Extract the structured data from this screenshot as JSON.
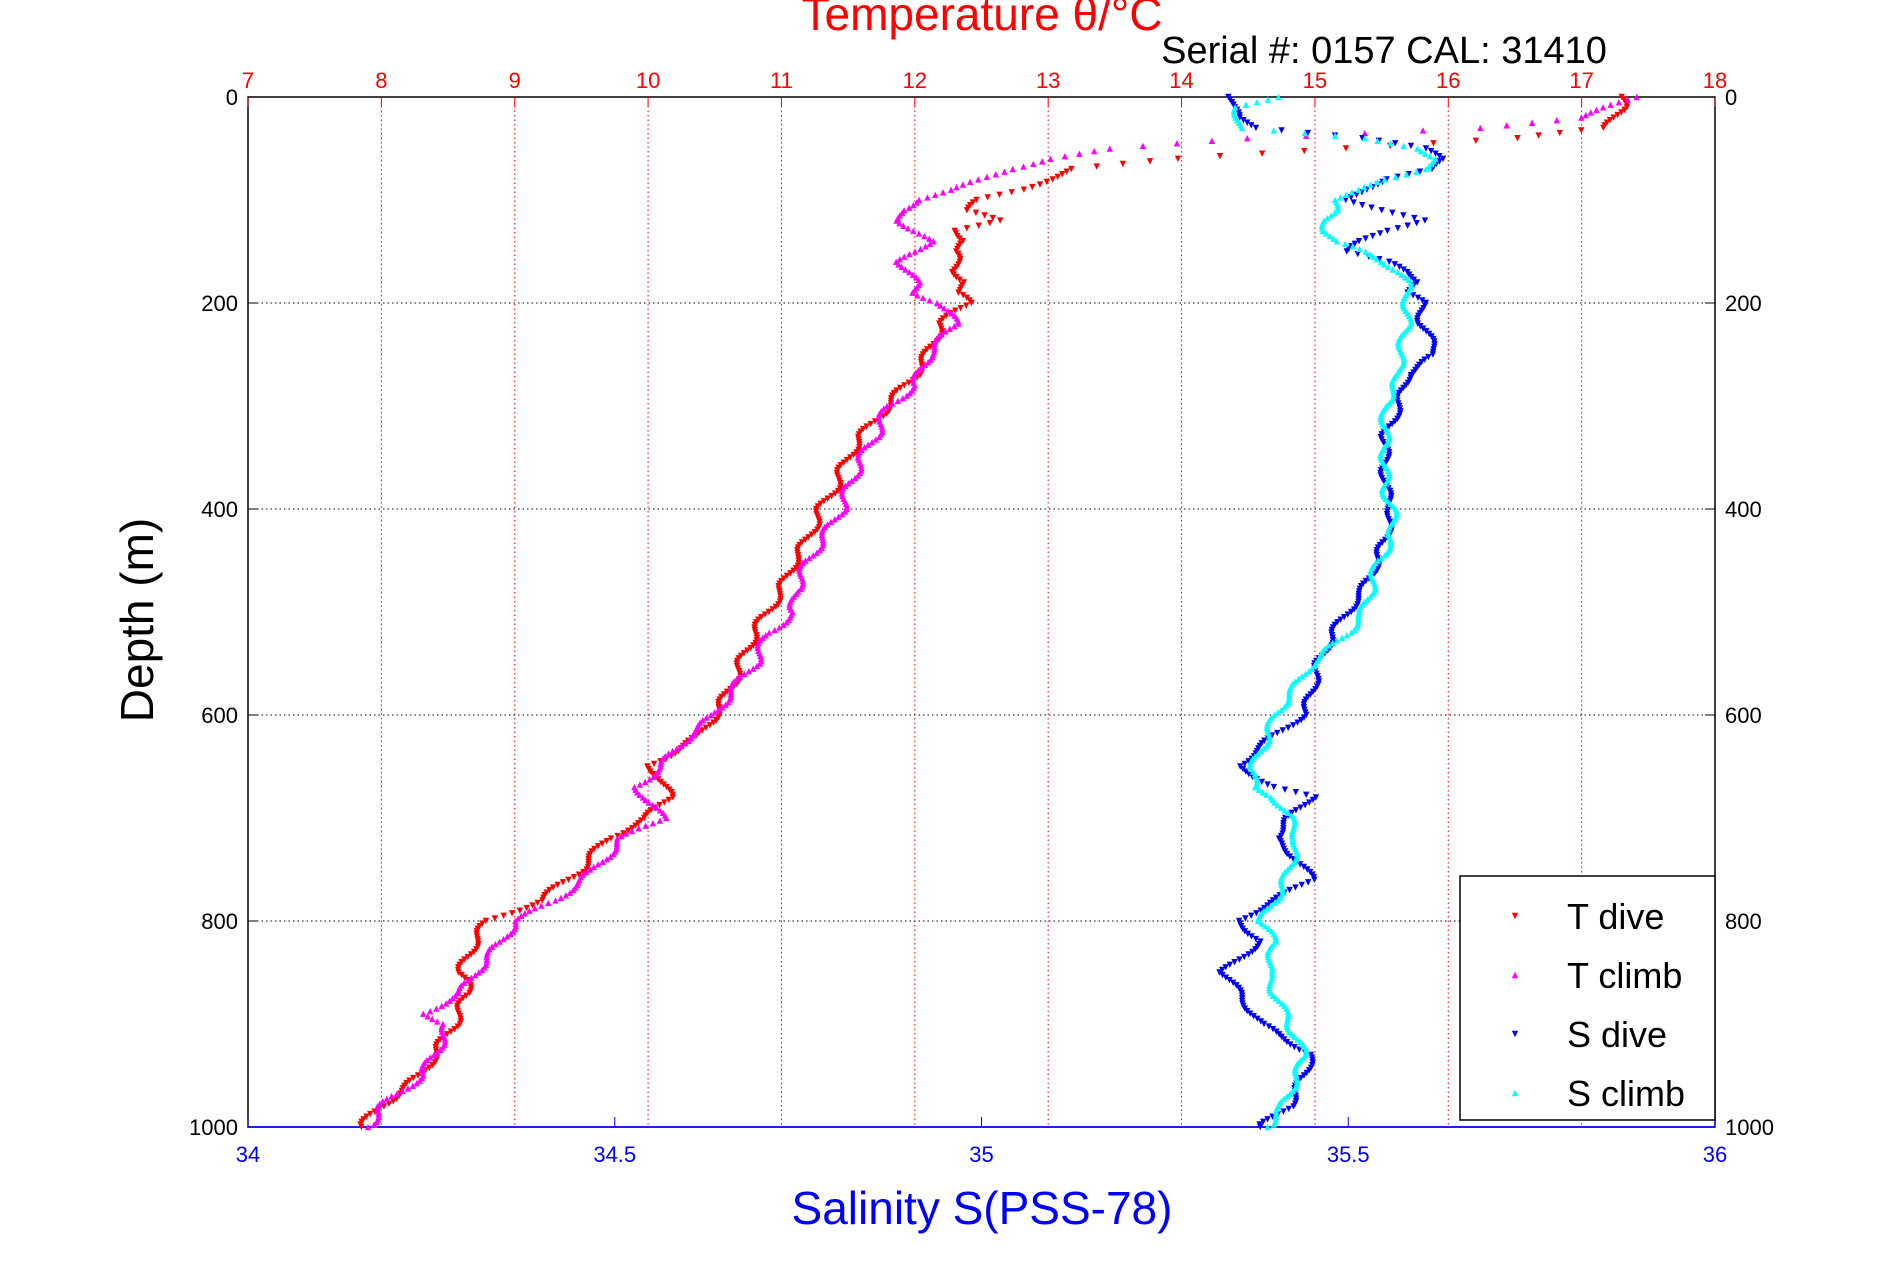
{
  "chart_data": {
    "type": "scatter",
    "title": "Temperature θ/°C",
    "subtitle": "Serial #: 0157  CAL: 31410",
    "xlabel_top": "Temperature θ/°C",
    "xlabel_bottom": "Salinity S(PSS-78)",
    "ylabel": "Depth (m)",
    "temperature_axis": {
      "lim": [
        7,
        18
      ],
      "ticks": [
        "7",
        "8",
        "9",
        "10",
        "11",
        "12",
        "13",
        "14",
        "15",
        "16",
        "17",
        "18"
      ]
    },
    "salinity_axis": {
      "lim": [
        34,
        36
      ],
      "ticks": [
        "34",
        "34.5",
        "35",
        "35.5",
        "36"
      ]
    },
    "depth_axis": {
      "lim": [
        0,
        1000
      ],
      "reversed": true,
      "ticks": [
        "0",
        "200",
        "400",
        "600",
        "800",
        "1000"
      ]
    },
    "grid": true,
    "legend_position": "bottom-right",
    "series": [
      {
        "name": "T dive",
        "axis": "temperature",
        "color": "#ff0000",
        "marker": "triangle-down",
        "depth": [
          0,
          10,
          20,
          30,
          40,
          50,
          60,
          70,
          80,
          90,
          100,
          110,
          120,
          130,
          140,
          150,
          160,
          170,
          180,
          190,
          200,
          220,
          250,
          270,
          300,
          330,
          350,
          380,
          400,
          430,
          450,
          480,
          500,
          520,
          550,
          580,
          600,
          620,
          650,
          660,
          680,
          700,
          720,
          750,
          780,
          800,
          820,
          850,
          870,
          900,
          930,
          950,
          980,
          1000
        ],
        "values": [
          17.3,
          17.3,
          17.25,
          17.2,
          16.5,
          15.2,
          14.0,
          13.2,
          13.0,
          12.8,
          12.5,
          12.4,
          12.6,
          12.3,
          12.4,
          12.3,
          12.3,
          12.3,
          12.4,
          12.3,
          12.4,
          12.2,
          12.1,
          12.0,
          11.8,
          11.6,
          11.5,
          11.4,
          11.3,
          11.2,
          11.1,
          11.0,
          10.9,
          10.8,
          10.7,
          10.6,
          10.5,
          10.4,
          10.0,
          10.1,
          10.15,
          10.0,
          9.7,
          9.5,
          9.2,
          8.8,
          8.7,
          8.6,
          8.65,
          8.55,
          8.4,
          8.3,
          8.0,
          7.85
        ]
      },
      {
        "name": "T climb",
        "axis": "temperature",
        "color": "#ff00ff",
        "marker": "triangle-up",
        "depth": [
          0,
          20,
          30,
          40,
          50,
          60,
          70,
          80,
          90,
          100,
          110,
          120,
          130,
          140,
          150,
          160,
          170,
          180,
          190,
          200,
          220,
          250,
          280,
          300,
          330,
          350,
          380,
          400,
          430,
          450,
          480,
          500,
          520,
          550,
          580,
          600,
          620,
          650,
          670,
          680,
          700,
          720,
          750,
          780,
          800,
          820,
          850,
          870,
          890,
          900,
          930,
          950,
          980,
          1000
        ],
        "values": [
          17.4,
          17.0,
          16.2,
          14.5,
          13.5,
          13.0,
          12.7,
          12.5,
          12.3,
          12.0,
          11.9,
          11.9,
          12.0,
          12.1,
          12.0,
          11.9,
          11.95,
          12.0,
          12.0,
          12.2,
          12.3,
          12.1,
          12.0,
          11.8,
          11.7,
          11.6,
          11.5,
          11.45,
          11.3,
          11.2,
          11.1,
          11.1,
          10.9,
          10.8,
          10.6,
          10.5,
          10.3,
          10.1,
          9.9,
          10.0,
          10.1,
          9.8,
          9.6,
          9.3,
          9.0,
          8.9,
          8.7,
          8.6,
          8.3,
          8.5,
          8.4,
          8.3,
          8.0,
          7.9
        ]
      },
      {
        "name": "S dive",
        "axis": "salinity",
        "color": "#0000ff",
        "marker": "triangle-down",
        "depth": [
          0,
          10,
          20,
          30,
          40,
          50,
          60,
          70,
          80,
          90,
          100,
          110,
          120,
          130,
          140,
          150,
          160,
          170,
          180,
          190,
          200,
          220,
          250,
          270,
          300,
          330,
          350,
          380,
          400,
          430,
          450,
          480,
          500,
          520,
          550,
          580,
          600,
          620,
          650,
          670,
          680,
          700,
          720,
          740,
          760,
          780,
          800,
          820,
          850,
          870,
          900,
          930,
          950,
          980,
          1000
        ],
        "values": [
          35.34,
          35.34,
          35.35,
          35.38,
          35.52,
          35.6,
          35.63,
          35.62,
          35.55,
          35.52,
          35.5,
          35.55,
          35.6,
          35.55,
          35.52,
          35.5,
          35.55,
          35.58,
          35.6,
          35.58,
          35.6,
          35.6,
          35.62,
          35.58,
          35.57,
          35.55,
          35.55,
          35.55,
          35.56,
          35.55,
          35.54,
          35.52,
          35.5,
          35.48,
          35.46,
          35.45,
          35.44,
          35.4,
          35.35,
          35.4,
          35.45,
          35.42,
          35.4,
          35.43,
          35.45,
          35.4,
          35.35,
          35.38,
          35.33,
          35.35,
          35.38,
          35.45,
          35.44,
          35.42,
          35.38
        ]
      },
      {
        "name": "S climb",
        "axis": "salinity",
        "color": "#00ffff",
        "marker": "triangle-up",
        "depth": [
          0,
          10,
          20,
          30,
          40,
          50,
          60,
          70,
          80,
          90,
          100,
          110,
          120,
          130,
          140,
          150,
          160,
          170,
          180,
          200,
          220,
          250,
          270,
          300,
          330,
          350,
          380,
          400,
          430,
          450,
          480,
          500,
          520,
          550,
          580,
          600,
          620,
          650,
          670,
          680,
          700,
          720,
          750,
          780,
          800,
          820,
          850,
          870,
          900,
          930,
          950,
          980,
          1000
        ],
        "values": [
          35.4,
          35.35,
          35.35,
          35.35,
          35.52,
          35.6,
          35.62,
          35.6,
          35.55,
          35.52,
          35.48,
          35.48,
          35.47,
          35.47,
          35.48,
          35.52,
          35.55,
          35.57,
          35.58,
          35.58,
          35.58,
          35.57,
          35.57,
          35.55,
          35.55,
          35.55,
          35.55,
          35.56,
          35.56,
          35.54,
          35.53,
          35.52,
          35.5,
          35.45,
          35.42,
          35.4,
          35.39,
          35.37,
          35.37,
          35.4,
          35.42,
          35.43,
          35.42,
          35.4,
          35.38,
          35.4,
          35.39,
          35.4,
          35.42,
          35.44,
          35.43,
          35.41,
          35.39
        ]
      }
    ]
  }
}
